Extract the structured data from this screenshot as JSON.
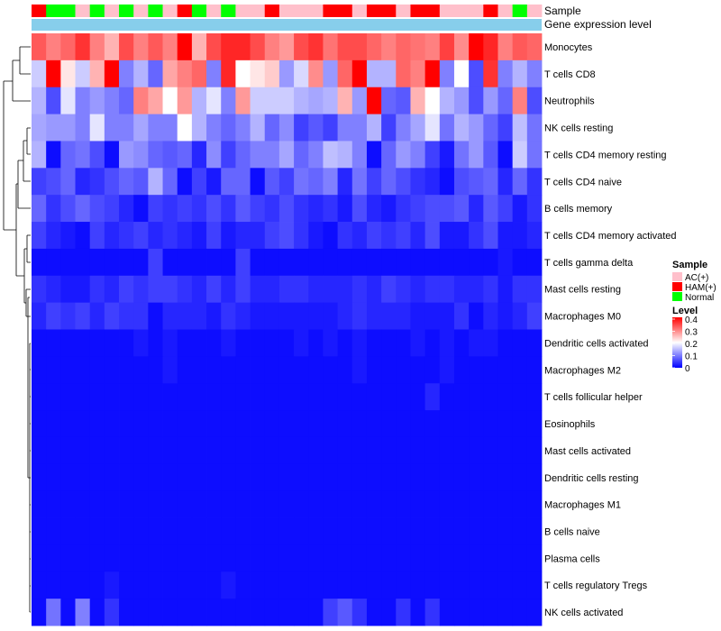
{
  "chart_data": {
    "type": "heatmap",
    "title": "",
    "column_annotations": [
      {
        "name": "Sample",
        "kind": "categorical"
      },
      {
        "name": "Gene expression level",
        "kind": "continuous",
        "color": "#87ceeb"
      }
    ],
    "sample_groups": {
      "order": [
        "AC(+)",
        "HAM(+)",
        "Normal"
      ],
      "colors": {
        "AC(+)": "#ffc0cb",
        "HAM(+)": "#ff0000",
        "Normal": "#00ff00"
      }
    },
    "samples": [
      "HAM(+)",
      "Normal",
      "Normal",
      "AC(+)",
      "Normal",
      "AC(+)",
      "Normal",
      "AC(+)",
      "Normal",
      "AC(+)",
      "HAM(+)",
      "Normal",
      "AC(+)",
      "Normal",
      "AC(+)",
      "AC(+)",
      "HAM(+)",
      "AC(+)",
      "AC(+)",
      "AC(+)",
      "HAM(+)",
      "HAM(+)",
      "AC(+)",
      "HAM(+)",
      "HAM(+)",
      "AC(+)",
      "HAM(+)",
      "HAM(+)",
      "AC(+)",
      "AC(+)",
      "AC(+)",
      "HAM(+)",
      "AC(+)",
      "Normal",
      "AC(+)"
    ],
    "rows": [
      "Monocytes",
      "T cells CD8",
      "Neutrophils",
      "NK cells resting",
      "T cells CD4 memory resting",
      "T cells CD4 naive",
      "B cells memory",
      "T cells CD4 memory activated",
      "T cells gamma delta",
      "Mast cells resting",
      "Macrophages M0",
      "Dendritic cells activated",
      "Macrophages M2",
      "T cells follicular helper",
      "Eosinophils",
      "Mast cells activated",
      "Dendritic cells resting",
      "Macrophages M1",
      "B cells naive",
      "Plasma cells",
      "T cells regulatory  Tregs",
      "NK cells activated"
    ],
    "values": [
      [
        0.33,
        0.3,
        0.32,
        0.36,
        0.3,
        0.26,
        0.34,
        0.3,
        0.33,
        0.3,
        0.4,
        0.26,
        0.34,
        0.37,
        0.37,
        0.34,
        0.3,
        0.28,
        0.34,
        0.36,
        0.31,
        0.34,
        0.34,
        0.32,
        0.3,
        0.32,
        0.31,
        0.3,
        0.35,
        0.29,
        0.4,
        0.37,
        0.3,
        0.33,
        0.32
      ],
      [
        0.16,
        0.4,
        0.22,
        0.16,
        0.26,
        0.4,
        0.1,
        0.14,
        0.08,
        0.27,
        0.3,
        0.32,
        0.1,
        0.37,
        0.2,
        0.22,
        0.24,
        0.12,
        0.17,
        0.29,
        0.12,
        0.32,
        0.4,
        0.14,
        0.14,
        0.32,
        0.3,
        0.4,
        0.1,
        0.2,
        0.06,
        0.36,
        0.1,
        0.14,
        0.1
      ],
      [
        0.14,
        0.06,
        0.18,
        0.1,
        0.12,
        0.1,
        0.08,
        0.3,
        0.27,
        0.2,
        0.28,
        0.14,
        0.18,
        0.1,
        0.28,
        0.16,
        0.16,
        0.16,
        0.14,
        0.13,
        0.14,
        0.26,
        0.12,
        0.4,
        0.08,
        0.07,
        0.26,
        0.2,
        0.14,
        0.12,
        0.06,
        0.12,
        0.08,
        0.3,
        0.06
      ],
      [
        0.13,
        0.12,
        0.12,
        0.1,
        0.18,
        0.1,
        0.1,
        0.13,
        0.1,
        0.1,
        0.2,
        0.14,
        0.1,
        0.08,
        0.1,
        0.14,
        0.08,
        0.11,
        0.05,
        0.07,
        0.05,
        0.1,
        0.1,
        0.14,
        0.05,
        0.1,
        0.13,
        0.18,
        0.09,
        0.14,
        0.12,
        0.08,
        0.05,
        0.15,
        0.09
      ],
      [
        0.14,
        0.01,
        0.08,
        0.09,
        0.06,
        0.01,
        0.12,
        0.11,
        0.08,
        0.07,
        0.08,
        0.03,
        0.11,
        0.05,
        0.08,
        0.1,
        0.1,
        0.13,
        0.08,
        0.1,
        0.15,
        0.14,
        0.1,
        0.01,
        0.08,
        0.12,
        0.1,
        0.05,
        0.02,
        0.09,
        0.12,
        0.07,
        0.01,
        0.16,
        0.09
      ],
      [
        0.05,
        0.06,
        0.08,
        0.03,
        0.04,
        0.06,
        0.08,
        0.07,
        0.14,
        0.08,
        0.01,
        0.05,
        0.02,
        0.08,
        0.08,
        0.01,
        0.07,
        0.05,
        0.09,
        0.08,
        0.1,
        0.03,
        0.09,
        0.05,
        0.08,
        0.06,
        0.04,
        0.03,
        0.01,
        0.06,
        0.07,
        0.08,
        0.03,
        0.08,
        0.04
      ],
      [
        0.08,
        0.04,
        0.06,
        0.08,
        0.06,
        0.05,
        0.03,
        0.01,
        0.05,
        0.04,
        0.05,
        0.04,
        0.06,
        0.04,
        0.07,
        0.05,
        0.04,
        0.06,
        0.04,
        0.03,
        0.04,
        0.02,
        0.06,
        0.03,
        0.02,
        0.04,
        0.05,
        0.06,
        0.06,
        0.07,
        0.03,
        0.07,
        0.05,
        0.02,
        0.04
      ],
      [
        0.05,
        0.03,
        0.02,
        0.01,
        0.05,
        0.03,
        0.04,
        0.05,
        0.03,
        0.04,
        0.03,
        0.02,
        0.05,
        0.02,
        0.03,
        0.03,
        0.05,
        0.06,
        0.04,
        0.02,
        0.01,
        0.04,
        0.03,
        0.05,
        0.04,
        0.05,
        0.03,
        0.06,
        0.02,
        0.02,
        0.04,
        0.06,
        0.02,
        0.02,
        0.03
      ],
      [
        0.01,
        0.01,
        0.01,
        0.01,
        0.01,
        0.01,
        0.01,
        0.01,
        0.05,
        0.01,
        0.01,
        0.01,
        0.01,
        0.01,
        0.05,
        0.01,
        0.01,
        0.01,
        0.01,
        0.01,
        0.01,
        0.01,
        0.01,
        0.01,
        0.01,
        0.01,
        0.01,
        0.01,
        0.01,
        0.01,
        0.01,
        0.01,
        0.02,
        0.01,
        0.01
      ],
      [
        0.04,
        0.03,
        0.02,
        0.02,
        0.04,
        0.03,
        0.05,
        0.04,
        0.05,
        0.05,
        0.04,
        0.03,
        0.05,
        0.03,
        0.05,
        0.03,
        0.03,
        0.04,
        0.04,
        0.03,
        0.03,
        0.03,
        0.04,
        0.03,
        0.05,
        0.04,
        0.03,
        0.04,
        0.04,
        0.03,
        0.03,
        0.04,
        0.02,
        0.04,
        0.04
      ],
      [
        0.03,
        0.05,
        0.04,
        0.05,
        0.03,
        0.05,
        0.04,
        0.04,
        0.01,
        0.03,
        0.03,
        0.03,
        0.02,
        0.04,
        0.03,
        0.02,
        0.02,
        0.02,
        0.02,
        0.02,
        0.02,
        0.03,
        0.04,
        0.03,
        0.03,
        0.03,
        0.02,
        0.02,
        0.02,
        0.04,
        0.01,
        0.03,
        0.02,
        0.03,
        0.05
      ],
      [
        0.01,
        0.01,
        0.01,
        0.01,
        0.01,
        0.01,
        0.01,
        0.02,
        0.01,
        0.02,
        0.01,
        0.01,
        0.01,
        0.02,
        0.01,
        0.01,
        0.01,
        0.01,
        0.02,
        0.01,
        0.02,
        0.01,
        0.02,
        0.01,
        0.01,
        0.01,
        0.02,
        0.01,
        0.02,
        0.01,
        0.02,
        0.02,
        0.01,
        0.01,
        0.01
      ],
      [
        0.01,
        0.01,
        0.01,
        0.01,
        0.01,
        0.01,
        0.01,
        0.01,
        0.01,
        0.02,
        0.01,
        0.01,
        0.01,
        0.01,
        0.01,
        0.01,
        0.01,
        0.01,
        0.01,
        0.01,
        0.01,
        0.01,
        0.02,
        0.01,
        0.01,
        0.01,
        0.01,
        0.01,
        0.02,
        0.01,
        0.01,
        0.01,
        0.01,
        0.01,
        0.01
      ],
      [
        0.01,
        0.01,
        0.01,
        0.01,
        0.01,
        0.01,
        0.01,
        0.01,
        0.01,
        0.01,
        0.01,
        0.01,
        0.01,
        0.01,
        0.01,
        0.01,
        0.01,
        0.01,
        0.01,
        0.01,
        0.01,
        0.01,
        0.01,
        0.01,
        0.01,
        0.01,
        0.01,
        0.03,
        0.01,
        0.01,
        0.01,
        0.01,
        0.01,
        0.01,
        0.01
      ],
      [
        0.01,
        0.01,
        0.01,
        0.01,
        0.01,
        0.01,
        0.01,
        0.01,
        0.01,
        0.01,
        0.01,
        0.01,
        0.01,
        0.01,
        0.01,
        0.01,
        0.01,
        0.01,
        0.01,
        0.01,
        0.01,
        0.01,
        0.01,
        0.01,
        0.01,
        0.01,
        0.01,
        0.01,
        0.01,
        0.01,
        0.01,
        0.01,
        0.01,
        0.01,
        0.01
      ],
      [
        0.01,
        0.01,
        0.01,
        0.01,
        0.01,
        0.01,
        0.01,
        0.01,
        0.01,
        0.01,
        0.01,
        0.01,
        0.01,
        0.01,
        0.01,
        0.01,
        0.01,
        0.01,
        0.01,
        0.01,
        0.01,
        0.01,
        0.01,
        0.01,
        0.01,
        0.01,
        0.01,
        0.01,
        0.01,
        0.01,
        0.01,
        0.01,
        0.01,
        0.01,
        0.01
      ],
      [
        0.01,
        0.01,
        0.01,
        0.01,
        0.01,
        0.01,
        0.01,
        0.01,
        0.01,
        0.01,
        0.01,
        0.01,
        0.01,
        0.01,
        0.01,
        0.01,
        0.01,
        0.01,
        0.01,
        0.01,
        0.01,
        0.01,
        0.01,
        0.01,
        0.01,
        0.01,
        0.01,
        0.01,
        0.01,
        0.01,
        0.01,
        0.01,
        0.01,
        0.01,
        0.01
      ],
      [
        0.01,
        0.01,
        0.01,
        0.01,
        0.01,
        0.01,
        0.01,
        0.01,
        0.01,
        0.01,
        0.01,
        0.01,
        0.01,
        0.01,
        0.01,
        0.01,
        0.01,
        0.01,
        0.01,
        0.01,
        0.01,
        0.01,
        0.01,
        0.01,
        0.01,
        0.01,
        0.01,
        0.01,
        0.01,
        0.01,
        0.01,
        0.01,
        0.01,
        0.01,
        0.01
      ],
      [
        0.01,
        0.01,
        0.01,
        0.01,
        0.01,
        0.01,
        0.01,
        0.01,
        0.01,
        0.01,
        0.01,
        0.01,
        0.01,
        0.01,
        0.01,
        0.01,
        0.01,
        0.01,
        0.01,
        0.01,
        0.01,
        0.01,
        0.01,
        0.01,
        0.01,
        0.01,
        0.01,
        0.01,
        0.01,
        0.01,
        0.01,
        0.01,
        0.01,
        0.01,
        0.01
      ],
      [
        0.01,
        0.01,
        0.01,
        0.01,
        0.01,
        0.01,
        0.01,
        0.01,
        0.01,
        0.01,
        0.01,
        0.01,
        0.01,
        0.01,
        0.01,
        0.01,
        0.01,
        0.01,
        0.01,
        0.01,
        0.01,
        0.01,
        0.01,
        0.01,
        0.01,
        0.01,
        0.01,
        0.01,
        0.01,
        0.01,
        0.01,
        0.01,
        0.01,
        0.01,
        0.01
      ],
      [
        0.01,
        0.01,
        0.01,
        0.01,
        0.01,
        0.02,
        0.01,
        0.01,
        0.01,
        0.01,
        0.01,
        0.01,
        0.01,
        0.02,
        0.01,
        0.01,
        0.01,
        0.01,
        0.01,
        0.01,
        0.01,
        0.01,
        0.01,
        0.01,
        0.01,
        0.01,
        0.01,
        0.01,
        0.01,
        0.01,
        0.01,
        0.01,
        0.01,
        0.01,
        0.01
      ],
      [
        0.01,
        0.09,
        0.01,
        0.1,
        0.01,
        0.04,
        0.01,
        0.01,
        0.01,
        0.01,
        0.01,
        0.01,
        0.01,
        0.01,
        0.01,
        0.01,
        0.01,
        0.01,
        0.01,
        0.01,
        0.05,
        0.07,
        0.04,
        0.01,
        0.01,
        0.04,
        0.01,
        0.04,
        0.01,
        0.01,
        0.01,
        0.01,
        0.01,
        0.01,
        0.01
      ]
    ],
    "color_scale": {
      "title": "Level",
      "min": 0,
      "max": 0.4,
      "stops": [
        {
          "value": 0,
          "color": "#0000ff"
        },
        {
          "value": 0.2,
          "color": "#ffffff"
        },
        {
          "value": 0.4,
          "color": "#ff0000"
        }
      ],
      "ticks": [
        "0.4",
        "0.3",
        "0.2",
        "0.1",
        "0"
      ]
    },
    "legend": {
      "sample_title": "Sample",
      "sample_entries": [
        "AC(+)",
        "HAM(+)",
        "Normal"
      ],
      "placement": "right"
    },
    "dendrogram": "rows, left"
  }
}
